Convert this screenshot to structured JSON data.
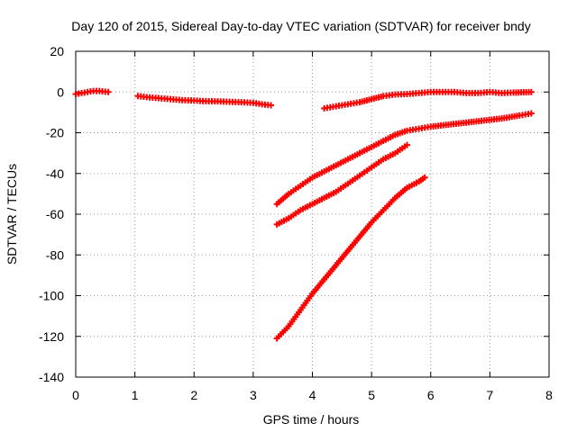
{
  "chart_data": {
    "type": "scatter",
    "title": "Day 120 of 2015, Sidereal Day-to-day VTEC variation (SDTVAR) for receiver bndy",
    "xlabel": "GPS time / hours",
    "ylabel": "SDTVAR / TECUs",
    "xlim": [
      0,
      8
    ],
    "ylim": [
      -140,
      20
    ],
    "xticks": [
      0,
      1,
      2,
      3,
      4,
      5,
      6,
      7,
      8
    ],
    "yticks": [
      -140,
      -120,
      -100,
      -80,
      -60,
      -40,
      -20,
      0,
      20
    ],
    "grid": true,
    "legend": "none",
    "color": "#ff0000",
    "series": [
      {
        "x": [
          0.0,
          0.1,
          0.2,
          0.3,
          0.4,
          0.55
        ],
        "y": [
          -1,
          -0.5,
          0,
          0.5,
          0.5,
          0
        ]
      },
      {
        "x": [
          1.05,
          1.2,
          1.4,
          1.6,
          1.8,
          2.0,
          2.2,
          2.4,
          2.6,
          2.8,
          3.0,
          3.15,
          3.3
        ],
        "y": [
          -2,
          -2.5,
          -3,
          -3.5,
          -4,
          -4.2,
          -4.5,
          -4.6,
          -4.8,
          -5,
          -5.3,
          -6,
          -6.5
        ]
      },
      {
        "x": [
          4.2,
          4.4,
          4.6,
          4.8,
          5.0,
          5.2,
          5.4,
          5.6,
          5.8,
          6.0,
          6.2,
          6.4,
          6.6,
          6.8,
          7.0,
          7.2,
          7.4,
          7.7
        ],
        "y": [
          -8,
          -7,
          -6,
          -5,
          -3.5,
          -2,
          -1.2,
          -1,
          -0.5,
          0,
          0,
          0,
          -0.5,
          -0.5,
          0,
          -0.5,
          -0.3,
          0
        ]
      },
      {
        "x": [
          3.4,
          3.6,
          3.8,
          4.0,
          4.2,
          4.4,
          4.6,
          4.8,
          5.0,
          5.2,
          5.4,
          5.6,
          5.8,
          6.0,
          6.3,
          6.6,
          6.9,
          7.2,
          7.5,
          7.7
        ],
        "y": [
          -55,
          -50,
          -46,
          -42,
          -39,
          -36,
          -33,
          -30,
          -27,
          -24,
          -21,
          -19,
          -18,
          -17,
          -16,
          -15,
          -14,
          -13,
          -11.5,
          -10.5
        ]
      },
      {
        "x": [
          3.4,
          3.6,
          3.8,
          4.0,
          4.2,
          4.4,
          4.6,
          4.8,
          5.0,
          5.2,
          5.4,
          5.6
        ],
        "y": [
          -65,
          -62,
          -58,
          -55,
          -52,
          -49,
          -45,
          -41,
          -37,
          -33,
          -30,
          -26
        ]
      },
      {
        "x": [
          3.4,
          3.6,
          3.8,
          4.0,
          4.2,
          4.4,
          4.6,
          4.8,
          5.0,
          5.2,
          5.4,
          5.6,
          5.8,
          5.9
        ],
        "y": [
          -121,
          -115,
          -107,
          -99,
          -92,
          -85,
          -78,
          -71,
          -64,
          -58,
          -52,
          -47,
          -44,
          -42
        ]
      }
    ]
  }
}
